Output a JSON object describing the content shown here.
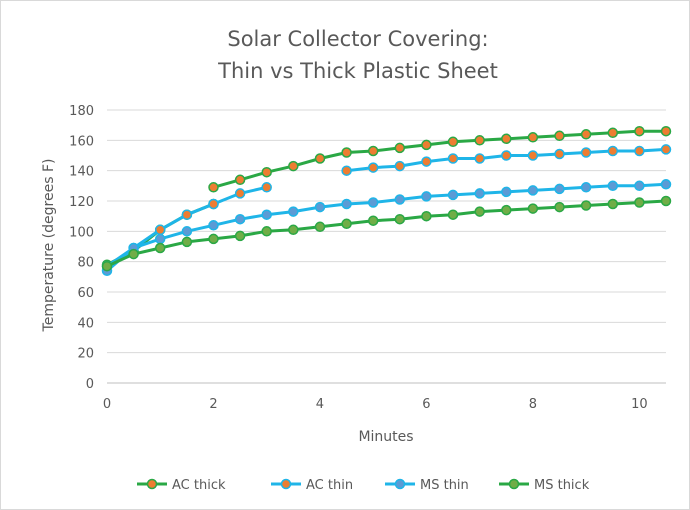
{
  "chart_data": {
    "type": "line",
    "title_line1": "Solar Collector Covering:",
    "title_line2": "Thin vs Thick Plastic Sheet",
    "xlabel": "Minutes",
    "ylabel": "Temperature (degrees F)",
    "xlim": [
      0,
      10.5
    ],
    "ylim": [
      0,
      180
    ],
    "x_ticks": [
      0,
      2,
      4,
      6,
      8,
      10
    ],
    "y_ticks": [
      0,
      20,
      40,
      60,
      80,
      100,
      120,
      140,
      160,
      180
    ],
    "grid": "horizontal",
    "legend_position": "bottom",
    "series": [
      {
        "name": "AC thick",
        "line_color": "#2aa845",
        "marker_color": "#ed7d31",
        "segments": [
          [
            [
              0,
              78
            ],
            [
              0.5,
              87
            ],
            [
              1,
              101
            ],
            [
              1.5,
              111
            ],
            [
              2,
              118
            ]
          ],
          [
            [
              2,
              129
            ],
            [
              2.5,
              134
            ],
            [
              3,
              139
            ],
            [
              3.5,
              143
            ],
            [
              4,
              148
            ],
            [
              4.5,
              152
            ],
            [
              5,
              153
            ],
            [
              5.5,
              155
            ],
            [
              6,
              157
            ],
            [
              6.5,
              159
            ],
            [
              7,
              160
            ],
            [
              7.5,
              161
            ],
            [
              8,
              162
            ],
            [
              8.5,
              163
            ],
            [
              9,
              164
            ],
            [
              9.5,
              165
            ],
            [
              10,
              166
            ],
            [
              10.5,
              166
            ]
          ]
        ]
      },
      {
        "name": "AC thin",
        "line_color": "#1fb5e8",
        "marker_color": "#ed7d31",
        "segments": [
          [
            [
              0,
              77
            ],
            [
              0.5,
              89
            ],
            [
              1,
              101
            ],
            [
              1.5,
              111
            ],
            [
              2,
              118
            ],
            [
              2.5,
              125
            ],
            [
              3,
              129
            ]
          ],
          [
            [
              4.5,
              140
            ],
            [
              5,
              142
            ],
            [
              5.5,
              143
            ],
            [
              6,
              146
            ],
            [
              6.5,
              148
            ],
            [
              7,
              148
            ],
            [
              7.5,
              150
            ],
            [
              8,
              150
            ],
            [
              8.5,
              151
            ],
            [
              9,
              152
            ],
            [
              9.5,
              153
            ],
            [
              10,
              153
            ],
            [
              10.5,
              154
            ]
          ]
        ]
      },
      {
        "name": "MS thin",
        "line_color": "#1fb5e8",
        "marker_color": "#5b9bd5",
        "segments": [
          [
            [
              0,
              74
            ],
            [
              0.5,
              89
            ],
            [
              1,
              95
            ],
            [
              1.5,
              100
            ],
            [
              2,
              104
            ],
            [
              2.5,
              108
            ],
            [
              3,
              111
            ],
            [
              3.5,
              113
            ],
            [
              4,
              116
            ],
            [
              4.5,
              118
            ],
            [
              5,
              119
            ],
            [
              5.5,
              121
            ],
            [
              6,
              123
            ],
            [
              6.5,
              124
            ],
            [
              7,
              125
            ],
            [
              7.5,
              126
            ],
            [
              8,
              127
            ],
            [
              8.5,
              128
            ],
            [
              9,
              129
            ],
            [
              9.5,
              130
            ],
            [
              10,
              130
            ],
            [
              10.5,
              131
            ]
          ]
        ]
      },
      {
        "name": "MS thick",
        "line_color": "#2aa845",
        "marker_color": "#70ad47",
        "segments": [
          [
            [
              0,
              77
            ],
            [
              0.5,
              85
            ],
            [
              1,
              89
            ],
            [
              1.5,
              93
            ],
            [
              2,
              95
            ],
            [
              2.5,
              97
            ],
            [
              3,
              100
            ],
            [
              3.5,
              101
            ],
            [
              4,
              103
            ],
            [
              4.5,
              105
            ],
            [
              5,
              107
            ],
            [
              5.5,
              108
            ],
            [
              6,
              110
            ],
            [
              6.5,
              111
            ],
            [
              7,
              113
            ],
            [
              7.5,
              114
            ],
            [
              8,
              115
            ],
            [
              8.5,
              116
            ],
            [
              9,
              117
            ],
            [
              9.5,
              118
            ],
            [
              10,
              119
            ],
            [
              10.5,
              120
            ]
          ]
        ]
      }
    ]
  }
}
